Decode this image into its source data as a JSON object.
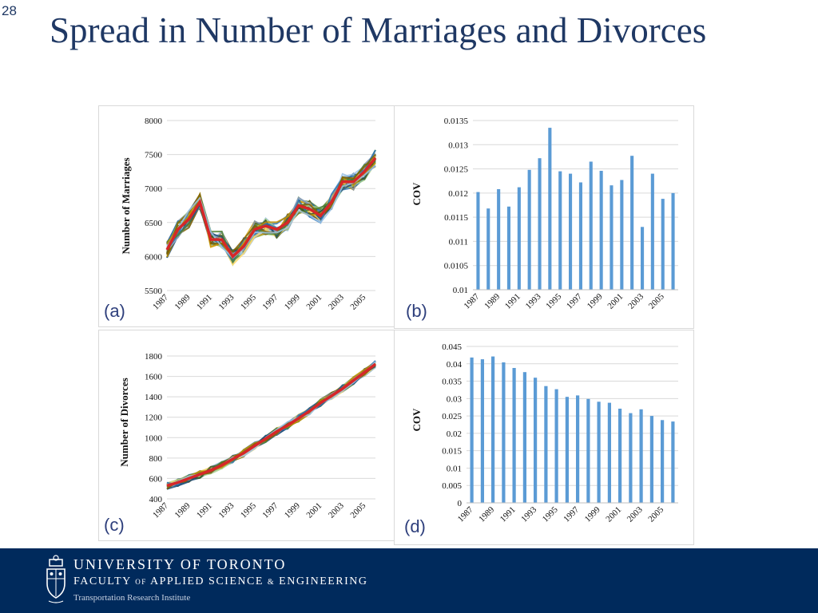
{
  "slide_number": "28",
  "title": "Spread in Number of Marriages and Divorces",
  "footer": {
    "line1": "UNIVERSITY OF TORONTO",
    "line2_part1": "FACULTY",
    "line2_of": "OF",
    "line2_part2": "APPLIED SCIENCE",
    "line2_amp": "&",
    "line2_part3": "ENGINEERING",
    "line3": "Transportation Research Institute",
    "bar_color": "#002a5c"
  },
  "chart_data": [
    {
      "id": "a",
      "panel_label": "(a)",
      "type": "line",
      "ylabel": "Number of Marriages",
      "ylim": [
        5500,
        8000
      ],
      "yticks": [
        "5500",
        "6000",
        "6500",
        "7000",
        "7500",
        "8000"
      ],
      "xtick_labels": [
        "1987",
        "1989",
        "1991",
        "1993",
        "1995",
        "1997",
        "1999",
        "2001",
        "2003",
        "2005"
      ],
      "x": [
        1987,
        1988,
        1989,
        1990,
        1991,
        1992,
        1993,
        1994,
        1995,
        1996,
        1997,
        1998,
        1999,
        2000,
        2001,
        2002,
        2003,
        2004,
        2005,
        2006
      ],
      "series": [
        {
          "role": "mean",
          "color": "#d62728",
          "values": [
            6100,
            6400,
            6550,
            6800,
            6250,
            6250,
            6000,
            6150,
            6400,
            6450,
            6400,
            6500,
            6750,
            6700,
            6600,
            6800,
            7100,
            7100,
            7250,
            7450
          ]
        }
      ],
      "ensemble_colors": [
        "#1f4e79",
        "#2e75b6",
        "#548235",
        "#bf9000",
        "#7f6000",
        "#9dc3e6",
        "#a9d18e",
        "#ffd966",
        "#375623",
        "#8497b0"
      ],
      "grid": true
    },
    {
      "id": "b",
      "panel_label": "(b)",
      "type": "bar",
      "ylabel": "COV",
      "ylim": [
        0.01,
        0.0135
      ],
      "yticks": [
        "0.01",
        "0.0105",
        "0.011",
        "0.0115",
        "0.012",
        "0.0125",
        "0.013",
        "0.0135"
      ],
      "categories": [
        "1987",
        "1988",
        "1989",
        "1990",
        "1991",
        "1992",
        "1993",
        "1994",
        "1995",
        "1996",
        "1997",
        "1998",
        "1999",
        "2000",
        "2001",
        "2002",
        "2003",
        "2004",
        "2005",
        "2006"
      ],
      "xtick_labels": [
        "1987",
        "1989",
        "1991",
        "1993",
        "1995",
        "1997",
        "1999",
        "2001",
        "2003",
        "2005"
      ],
      "values": [
        0.01202,
        0.01168,
        0.01208,
        0.01172,
        0.01212,
        0.01248,
        0.01272,
        0.01335,
        0.01245,
        0.0124,
        0.01222,
        0.01265,
        0.01246,
        0.01216,
        0.01227,
        0.01277,
        0.0113,
        0.0124,
        0.01188,
        0.012
      ],
      "color": "#5b9bd5",
      "grid": true
    },
    {
      "id": "c",
      "panel_label": "(c)",
      "type": "line",
      "ylabel": "Number of Divorces",
      "ylim": [
        400,
        1800
      ],
      "yticks": [
        "400",
        "600",
        "800",
        "1000",
        "1200",
        "1400",
        "1600",
        "1800"
      ],
      "xtick_labels": [
        "1987",
        "1989",
        "1991",
        "1993",
        "1995",
        "1997",
        "1999",
        "2001",
        "2003",
        "2005"
      ],
      "x": [
        1987,
        1988,
        1989,
        1990,
        1991,
        1992,
        1993,
        1994,
        1995,
        1996,
        1997,
        1998,
        1999,
        2000,
        2001,
        2002,
        2003,
        2004,
        2005,
        2006
      ],
      "series": [
        {
          "role": "mean",
          "color": "#d62728",
          "values": [
            530,
            560,
            600,
            640,
            680,
            730,
            790,
            850,
            920,
            990,
            1060,
            1120,
            1190,
            1260,
            1340,
            1410,
            1480,
            1560,
            1640,
            1720
          ]
        }
      ],
      "ensemble_colors": [
        "#1f4e79",
        "#2e75b6",
        "#548235",
        "#bf9000",
        "#7f6000",
        "#9dc3e6",
        "#a9d18e",
        "#ffd966",
        "#375623",
        "#8497b0"
      ],
      "grid": true
    },
    {
      "id": "d",
      "panel_label": "(d)",
      "type": "bar",
      "ylabel": "COV",
      "ylim": [
        0,
        0.045
      ],
      "yticks": [
        "0",
        "0.005",
        "0.01",
        "0.015",
        "0.02",
        "0.025",
        "0.03",
        "0.035",
        "0.04",
        "0.045"
      ],
      "categories": [
        "1987",
        "1988",
        "1989",
        "1990",
        "1991",
        "1992",
        "1993",
        "1994",
        "1995",
        "1996",
        "1997",
        "1998",
        "1999",
        "2000",
        "2001",
        "2002",
        "2003",
        "2004",
        "2005",
        "2006"
      ],
      "xtick_labels": [
        "1987",
        "1989",
        "1991",
        "1993",
        "1995",
        "1997",
        "1999",
        "2001",
        "2003",
        "2005"
      ],
      "values": [
        0.0418,
        0.0413,
        0.0421,
        0.0404,
        0.0388,
        0.0376,
        0.036,
        0.0336,
        0.0327,
        0.0305,
        0.0309,
        0.0299,
        0.0291,
        0.0288,
        0.0271,
        0.0258,
        0.0269,
        0.025,
        0.0238,
        0.0234
      ],
      "color": "#5b9bd5",
      "grid": true
    }
  ]
}
